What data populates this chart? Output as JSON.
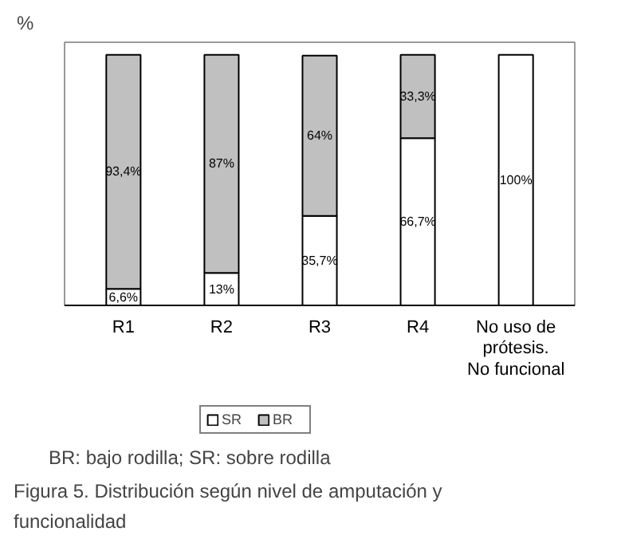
{
  "chart_data": {
    "type": "bar",
    "stacked": true,
    "ylabel": "%",
    "categories": [
      "R1",
      "R2",
      "R3",
      "R4",
      "No uso de prótesis. No funcional"
    ],
    "series": [
      {
        "name": "SR",
        "color": "#ffffff",
        "values": [
          6.6,
          13,
          35.7,
          66.7,
          100
        ],
        "value_labels": [
          "6,6%",
          "13%",
          "35,7%",
          "66,7%",
          "100%"
        ]
      },
      {
        "name": "BR",
        "color": "#c0c0c0",
        "values": [
          93.4,
          87,
          64,
          33.3,
          null
        ],
        "value_labels": [
          "93,4%",
          "87%",
          "64%",
          "33,3%",
          null
        ]
      }
    ],
    "legend": "bottom",
    "tick_labels": "x",
    "annotations": [
      "BR: bajo rodilla; SR: sobre rodilla",
      "Figura 5. Distribución según nivel de amputación y funcionalidad"
    ]
  }
}
